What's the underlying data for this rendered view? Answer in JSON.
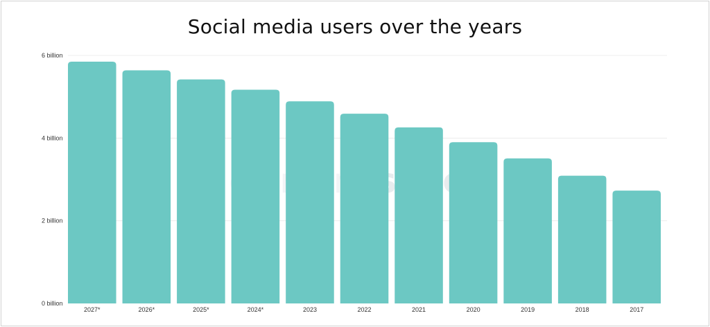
{
  "chart_data": {
    "type": "bar",
    "title": "Social media users over the years",
    "categories": [
      "2027*",
      "2026*",
      "2025*",
      "2024*",
      "2023",
      "2022",
      "2021",
      "2020",
      "2019",
      "2018",
      "2017"
    ],
    "values": [
      5.85,
      5.64,
      5.42,
      5.17,
      4.89,
      4.59,
      4.26,
      3.9,
      3.51,
      3.09,
      2.73
    ],
    "unit": "billion",
    "yticks": [
      "0 billion",
      "2 billion",
      "4 billion",
      "6 billion"
    ],
    "ytick_values": [
      0,
      2,
      4,
      6
    ],
    "ylim": [
      0,
      6
    ],
    "xlabel": "",
    "ylabel": "",
    "grid": true,
    "bar_color": "#6cc8c3",
    "watermark": {
      "light": "diamond",
      "bold": "sage"
    }
  }
}
